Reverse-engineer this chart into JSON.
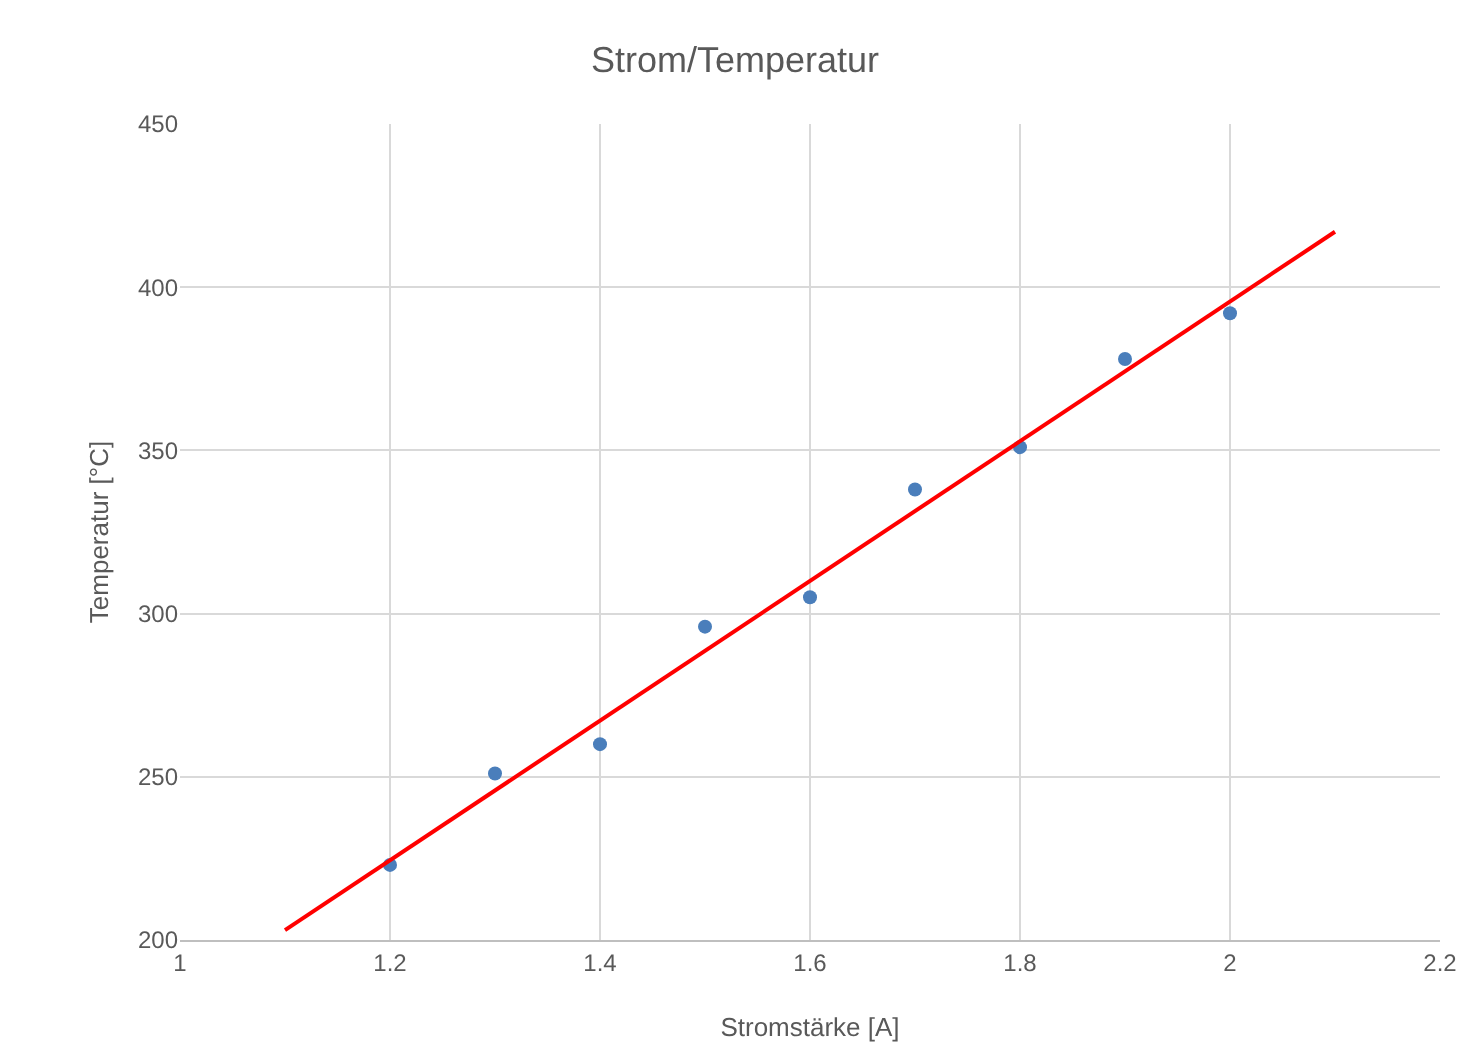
{
  "chart_data": {
    "type": "scatter",
    "title": "Strom/Temperatur",
    "xlabel": "Stromstärke [A]",
    "ylabel": "Temperatur [°C]",
    "xlim": [
      1,
      2.2
    ],
    "xticks": [
      1,
      1.2,
      1.4,
      1.6,
      1.8,
      2,
      2.2
    ],
    "ylim": [
      200,
      450
    ],
    "yticks": [
      200,
      250,
      300,
      350,
      400,
      450
    ],
    "grid": true,
    "series": [
      {
        "marker": "circle",
        "color": "#4a7ebb",
        "x": [
          1.2,
          1.3,
          1.4,
          1.5,
          1.6,
          1.7,
          1.8,
          1.9,
          2.0
        ],
        "values": [
          223,
          251,
          260,
          296,
          305,
          338,
          351,
          378,
          392
        ]
      },
      {
        "type": "line",
        "marker": "none",
        "line_style": "solid",
        "color": "#ff0000",
        "x": [
          1.1,
          2.1
        ],
        "values": [
          203,
          417
        ]
      }
    ]
  }
}
